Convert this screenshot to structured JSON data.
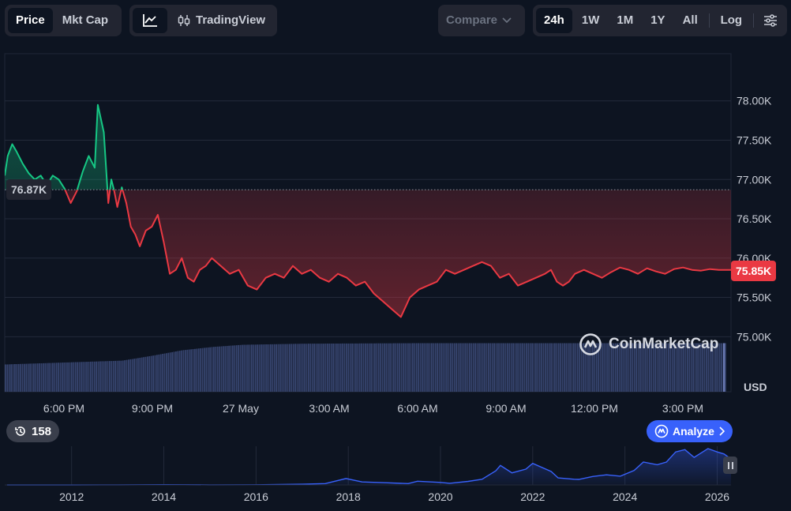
{
  "toolbar": {
    "view_tabs": [
      "Price",
      "Mkt Cap"
    ],
    "tradingview_label": "TradingView",
    "compare_label": "Compare",
    "ranges": [
      "24h",
      "1W",
      "1M",
      "1Y",
      "All"
    ],
    "log_label": "Log",
    "active_view": "Price",
    "active_range": "24h"
  },
  "colors": {
    "up": "#16c784",
    "down": "#ea3943",
    "background": "#0d1421",
    "volume": "#3c4a78",
    "overview_line": "#3861fb"
  },
  "chart_data": [
    {
      "type": "line",
      "xlabel": "",
      "ylabel": "USD",
      "x_tick_labels": [
        "6:00 PM",
        "9:00 PM",
        "27 May",
        "3:00 AM",
        "6:00 AM",
        "9:00 AM",
        "12:00 PM",
        "3:00 PM"
      ],
      "y_tick_labels": [
        "75.00K",
        "75.50K",
        "76.00K",
        "76.50K",
        "77.00K",
        "77.50K",
        "78.00K"
      ],
      "y_ticks": [
        75000,
        75500,
        76000,
        76500,
        77000,
        77500,
        78000
      ],
      "ylim": [
        74300,
        78600
      ],
      "xlim": [
        16.1,
        40.3
      ],
      "open_price": 76870,
      "open_label": "76.87K",
      "last_price": 75850,
      "last_label": "75.85K",
      "series": [
        {
          "x": [
            16.1,
            16.2,
            16.35,
            16.5,
            16.7,
            16.9,
            17.1,
            17.3,
            17.5,
            17.7,
            17.9,
            18.1,
            18.3,
            18.5,
            18.7,
            18.9,
            19.1,
            19.2,
            19.4,
            19.55,
            19.65,
            19.75,
            19.85,
            20.0,
            20.15,
            20.3,
            20.45,
            20.6,
            20.8,
            21.0,
            21.2,
            21.4,
            21.6,
            21.8,
            22.0,
            22.2,
            22.4,
            22.6,
            22.8,
            23.0,
            23.3,
            23.6,
            23.9,
            24.2,
            24.5,
            24.8,
            25.1,
            25.4,
            25.7,
            26.0,
            26.3,
            26.6,
            26.9,
            27.2,
            27.5,
            27.8,
            28.1,
            28.4,
            28.7,
            29.0,
            29.3,
            29.6,
            29.9,
            30.2,
            30.5,
            30.8,
            31.1,
            31.4,
            31.7,
            32.0,
            32.3,
            32.6,
            32.9,
            33.2,
            33.5,
            33.8,
            34.1,
            34.3,
            34.5,
            34.7,
            34.9,
            35.1,
            35.4,
            35.7,
            36.0,
            36.3,
            36.6,
            36.9,
            37.2,
            37.5,
            37.8,
            38.1,
            38.4,
            38.7,
            39.0,
            39.3,
            39.6,
            39.9,
            40.2,
            40.3
          ],
          "y": [
            77050,
            77300,
            77450,
            77350,
            77200,
            77080,
            77000,
            77050,
            76930,
            77050,
            77000,
            76880,
            76700,
            76850,
            77100,
            77300,
            77150,
            77950,
            77600,
            76700,
            77000,
            76850,
            76650,
            76900,
            76700,
            76400,
            76300,
            76150,
            76350,
            76400,
            76550,
            76200,
            75800,
            75850,
            76000,
            75750,
            75700,
            75850,
            75900,
            76000,
            75900,
            75800,
            75850,
            75650,
            75600,
            75750,
            75800,
            75750,
            75900,
            75800,
            75850,
            75750,
            75700,
            75800,
            75750,
            75650,
            75700,
            75550,
            75450,
            75350,
            75250,
            75500,
            75600,
            75650,
            75700,
            75850,
            75800,
            75850,
            75900,
            75950,
            75900,
            75750,
            75800,
            75650,
            75700,
            75750,
            75800,
            75850,
            75700,
            75650,
            75700,
            75800,
            75850,
            75800,
            75750,
            75820,
            75880,
            75850,
            75800,
            75870,
            75830,
            75800,
            75860,
            75880,
            75850,
            75840,
            75860,
            75850,
            75850,
            75850
          ],
          "up_color": "#16c784",
          "down_color": "#ea3943"
        }
      ],
      "volume": {
        "x": [
          16.1,
          20.0,
          21.0,
          22.0,
          23.0,
          24.0,
          26.0,
          30.0,
          36.0,
          40.0,
          40.3
        ],
        "values": [
          0.5,
          0.57,
          0.66,
          0.76,
          0.82,
          0.86,
          0.88,
          0.89,
          0.89,
          0.89,
          0.89
        ]
      }
    },
    {
      "type": "area",
      "x_tick_labels": [
        "2012",
        "2014",
        "2016",
        "2018",
        "2020",
        "2022",
        "2024",
        "2026"
      ],
      "x_ticks": [
        2012,
        2014,
        2016,
        2018,
        2020,
        2022,
        2024,
        2026
      ],
      "xlim": [
        2010.55,
        2026.3
      ],
      "ylim": [
        0,
        115000
      ],
      "x": [
        2010.6,
        2012.0,
        2013.0,
        2014.0,
        2015.0,
        2016.0,
        2017.0,
        2017.5,
        2017.95,
        2018.3,
        2018.8,
        2019.3,
        2019.5,
        2020.0,
        2020.2,
        2020.6,
        2020.9,
        2021.2,
        2021.3,
        2021.55,
        2021.85,
        2022.0,
        2022.4,
        2022.55,
        2022.9,
        2023.0,
        2023.3,
        2023.6,
        2023.9,
        2024.2,
        2024.4,
        2024.7,
        2024.9,
        2025.1,
        2025.3,
        2025.5,
        2025.8,
        2026.0,
        2026.15,
        2026.3
      ],
      "y": [
        0,
        0,
        300,
        600,
        300,
        500,
        2000,
        4000,
        19000,
        9000,
        6500,
        4000,
        11000,
        7500,
        5000,
        10500,
        17000,
        42000,
        58000,
        36000,
        47000,
        64000,
        40000,
        21000,
        17000,
        16500,
        25000,
        30000,
        26000,
        43000,
        68000,
        60000,
        68000,
        98000,
        105000,
        82000,
        108000,
        98000,
        92000,
        77000
      ]
    }
  ],
  "badges": {
    "history_count": "158",
    "analyze_label": "Analyze"
  },
  "watermark_text": "CoinMarketCap"
}
